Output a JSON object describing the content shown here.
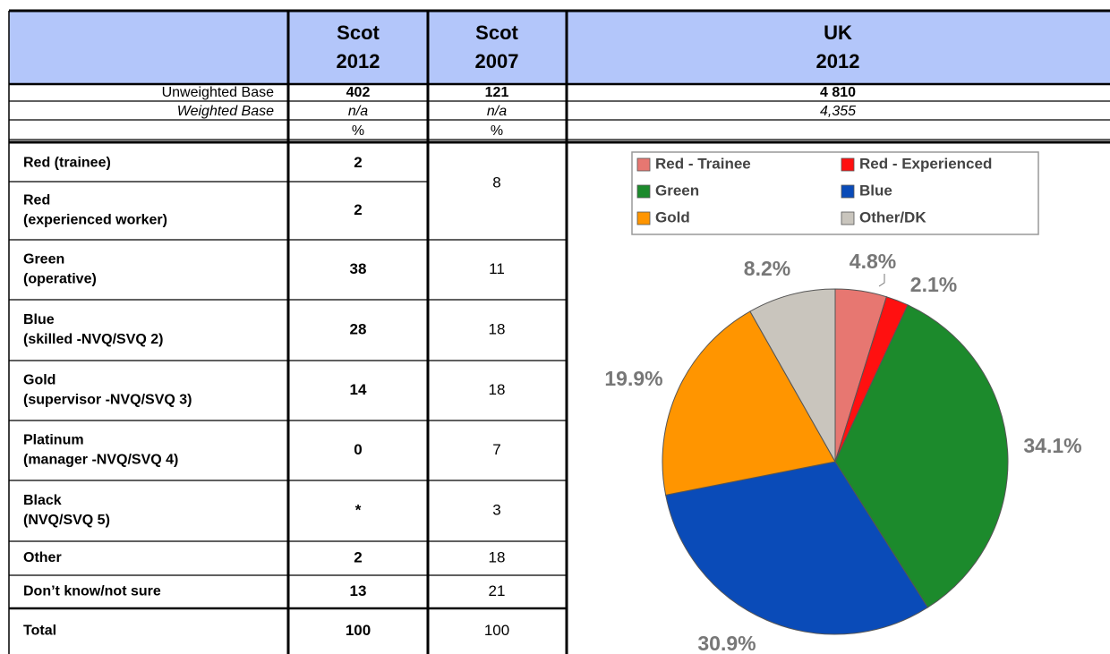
{
  "table": {
    "header": [
      [
        "Scot",
        "2012"
      ],
      [
        "Scot",
        "2007"
      ],
      [
        "UK",
        "2012"
      ]
    ],
    "bases": [
      {
        "label": "Unweighted Base",
        "scot2012": 402,
        "scot2007": 121,
        "uk2012": "4 810"
      },
      {
        "label": "Weighted Base",
        "scot2012": "n/a",
        "scot2007": "n/a",
        "uk2012": "4,355"
      },
      {
        "scot2012": "%",
        "scot2007": "%"
      }
    ],
    "rows": [
      {
        "label": [
          "Red (trainee)"
        ],
        "scot2012": 2,
        "scot2007": 8
      },
      {
        "label": [
          "Red",
          "(experienced worker)"
        ],
        "scot2012": 2
      },
      {
        "label": [
          "Green",
          "(operative)"
        ],
        "scot2012": 38,
        "scot2007": 11
      },
      {
        "label": [
          "Blue",
          "(skilled -NVQ/SVQ 2)"
        ],
        "scot2012": 28,
        "scot2007": 18
      },
      {
        "label": [
          "Gold",
          "(supervisor -NVQ/SVQ 3)"
        ],
        "scot2012": 14,
        "scot2007": 18
      },
      {
        "label": [
          "Platinum",
          "(manager -NVQ/SVQ 4)"
        ],
        "scot2012": 0,
        "scot2007": 7
      },
      {
        "label": [
          "Black",
          " (NVQ/SVQ 5)"
        ],
        "scot2012": "*",
        "scot2007": 3
      },
      {
        "label": [
          "Other"
        ],
        "scot2012": 2,
        "scot2007": 18
      },
      {
        "label": [
          "Don’t know/not sure"
        ],
        "scot2012": 13,
        "scot2007": 21
      },
      {
        "label": [
          "Total"
        ],
        "scot2012": 100,
        "scot2007": 100
      }
    ]
  },
  "chart": {
    "type": "pie",
    "categories": [
      "Red - Trainee",
      "Red - Experienced",
      "Green",
      "Blue",
      "Gold",
      "Other/DK"
    ],
    "values": [
      4.8,
      2.1,
      34.1,
      30.9,
      19.9,
      8.2
    ],
    "value_labels": [
      "4.8%",
      "2.1%",
      "34.1%",
      "30.9%",
      "19.9%",
      "8.2%"
    ],
    "colors": [
      "#e77771",
      "#ff1010",
      "#1c8a2c",
      "#0a4bb8",
      "#ff9500",
      "#c9c5bd"
    ]
  }
}
